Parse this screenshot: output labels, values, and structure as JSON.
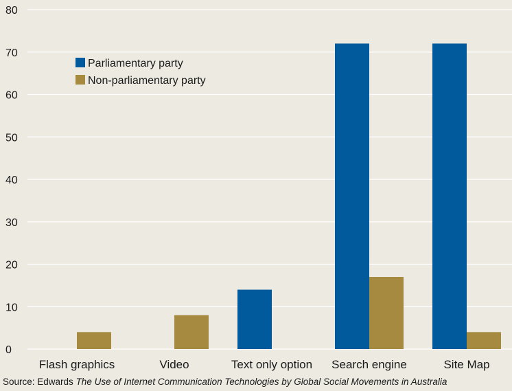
{
  "chart_data": {
    "type": "bar",
    "categories": [
      "Flash graphics",
      "Video",
      "Text only option",
      "Search engine",
      "Site Map"
    ],
    "series": [
      {
        "name": "Parliamentary party",
        "color": "#005a9c",
        "values": [
          0,
          0,
          14,
          72,
          72
        ]
      },
      {
        "name": "Non-parliamentary party",
        "color": "#a58a3f",
        "values": [
          4,
          8,
          0,
          17,
          4
        ]
      }
    ],
    "ylim": [
      0,
      80
    ],
    "yticks": [
      0,
      10,
      20,
      30,
      40,
      50,
      60,
      70,
      80
    ],
    "grid": true,
    "legend_position": "top-left"
  },
  "source": {
    "prefix": "Source: Edwards ",
    "title": "The Use of Internet Communication Technologies by Global Social Movements in Australia"
  }
}
